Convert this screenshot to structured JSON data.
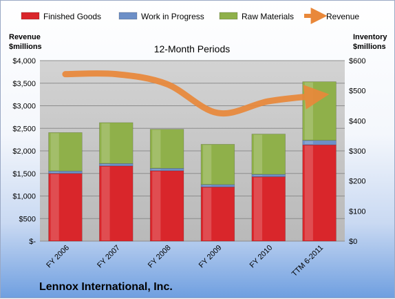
{
  "chart_data": {
    "type": "bar",
    "subtype": "stacked-bar-with-line",
    "subtitle": "12-Month Periods",
    "company": "Lennox International, Inc.",
    "categories": [
      "FY 2006",
      "FY 2007",
      "FY 2008",
      "FY 2009",
      "FY 2010",
      "TTM 6-2011"
    ],
    "series": [
      {
        "name": "Finished Goods",
        "axis": "right",
        "color": "#d9262b",
        "values": [
          225,
          250,
          234,
          180,
          214,
          320
        ]
      },
      {
        "name": "Work in Progress",
        "axis": "right",
        "color": "#6d8fc7",
        "values": [
          8,
          8,
          8,
          8,
          8,
          15
        ]
      },
      {
        "name": "Raw Materials",
        "axis": "right",
        "color": "#8fb04a",
        "values": [
          128,
          136,
          130,
          134,
          134,
          195
        ]
      },
      {
        "name": "Revenue",
        "axis": "left",
        "type": "line",
        "color": "#e9883a",
        "values": [
          3700,
          3700,
          3480,
          2840,
          3100,
          3230
        ]
      }
    ],
    "left_axis": {
      "label": "Revenue\n$millions",
      "min": 0,
      "max": 4000,
      "step": 500,
      "ticks": [
        "$-",
        "$500",
        "$1,000",
        "$1,500",
        "$2,000",
        "$2,500",
        "$3,000",
        "$3,500",
        "$4,000"
      ]
    },
    "right_axis": {
      "label": "Inventory\n$millions",
      "min": 0,
      "max": 600,
      "step": 100,
      "ticks": [
        "$0",
        "$100",
        "$200",
        "$300",
        "$400",
        "$500",
        "$600"
      ]
    },
    "legend": {
      "position": "top",
      "items": [
        {
          "label": "Finished Goods",
          "color": "#d9262b",
          "kind": "bar"
        },
        {
          "label": "Work in Progress",
          "color": "#6d8fc7",
          "kind": "bar"
        },
        {
          "label": "Raw Materials",
          "color": "#8fb04a",
          "kind": "bar"
        },
        {
          "label": "Revenue",
          "color": "#e9883a",
          "kind": "arrow"
        }
      ]
    },
    "grid": true,
    "plot_background": "#c8c8c8"
  }
}
